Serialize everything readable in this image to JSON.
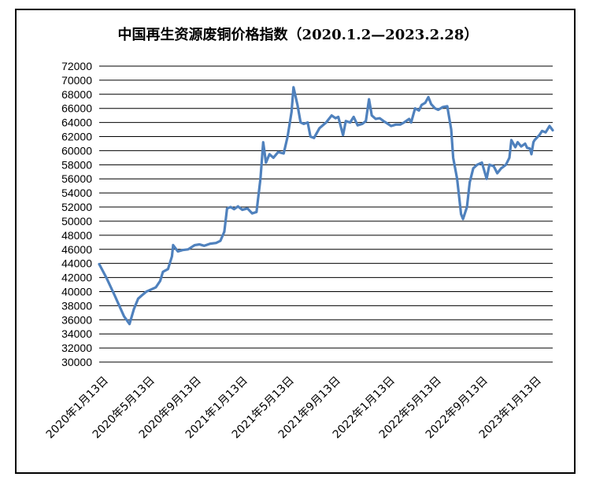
{
  "chart_data": {
    "type": "line",
    "title": "中国再生资源废铜价格指数（2020.1.2—2023.2.28）",
    "xlabel": "",
    "ylabel": "",
    "ylim": [
      30000,
      72000
    ],
    "y_ticks": [
      30000,
      32000,
      34000,
      36000,
      38000,
      40000,
      42000,
      44000,
      46000,
      48000,
      50000,
      52000,
      54000,
      56000,
      58000,
      60000,
      62000,
      64000,
      66000,
      68000,
      70000,
      72000
    ],
    "x_ticks": [
      "2020年1月13日",
      "2020年5月13日",
      "2020年9月13日",
      "2021年1月13日",
      "2021年5月13日",
      "2021年9月13日",
      "2022年1月13日",
      "2022年5月13日",
      "2022年9月13日",
      "2023年1月13日"
    ],
    "grid": "horizontal",
    "legend": "none",
    "line_color": "#4f81bd",
    "series": [
      {
        "name": "",
        "points": [
          [
            "2020-01-02",
            43900
          ],
          [
            "2020-01-20",
            42000
          ],
          [
            "2020-02-10",
            39500
          ],
          [
            "2020-03-05",
            36500
          ],
          [
            "2020-03-19",
            35400
          ],
          [
            "2020-03-30",
            37500
          ],
          [
            "2020-04-10",
            39000
          ],
          [
            "2020-04-20",
            39500
          ],
          [
            "2020-05-01",
            40000
          ],
          [
            "2020-05-13",
            40300
          ],
          [
            "2020-05-25",
            40600
          ],
          [
            "2020-06-05",
            41500
          ],
          [
            "2020-06-12",
            42800
          ],
          [
            "2020-06-25",
            43200
          ],
          [
            "2020-07-05",
            45000
          ],
          [
            "2020-07-08",
            46600
          ],
          [
            "2020-07-20",
            45700
          ],
          [
            "2020-08-01",
            45900
          ],
          [
            "2020-08-15",
            46000
          ],
          [
            "2020-09-01",
            46600
          ],
          [
            "2020-09-13",
            46700
          ],
          [
            "2020-09-25",
            46500
          ],
          [
            "2020-10-10",
            46800
          ],
          [
            "2020-10-25",
            46900
          ],
          [
            "2020-11-05",
            47200
          ],
          [
            "2020-11-15",
            48500
          ],
          [
            "2020-11-22",
            51800
          ],
          [
            "2020-12-01",
            52000
          ],
          [
            "2020-12-10",
            51700
          ],
          [
            "2020-12-20",
            52100
          ],
          [
            "2020-12-31",
            51600
          ],
          [
            "2021-01-13",
            51800
          ],
          [
            "2021-01-25",
            51100
          ],
          [
            "2021-02-05",
            51300
          ],
          [
            "2021-02-15",
            56000
          ],
          [
            "2021-02-22",
            61200
          ],
          [
            "2021-03-01",
            58300
          ],
          [
            "2021-03-10",
            59500
          ],
          [
            "2021-03-20",
            59000
          ],
          [
            "2021-04-01",
            59800
          ],
          [
            "2021-04-15",
            59600
          ],
          [
            "2021-04-25",
            62000
          ],
          [
            "2021-05-05",
            65500
          ],
          [
            "2021-05-10",
            69000
          ],
          [
            "2021-05-20",
            66500
          ],
          [
            "2021-05-28",
            64000
          ],
          [
            "2021-06-05",
            63800
          ],
          [
            "2021-06-15",
            64000
          ],
          [
            "2021-06-22",
            62000
          ],
          [
            "2021-07-01",
            61800
          ],
          [
            "2021-07-15",
            63200
          ],
          [
            "2021-08-01",
            64000
          ],
          [
            "2021-08-15",
            65000
          ],
          [
            "2021-08-25",
            64600
          ],
          [
            "2021-09-01",
            64800
          ],
          [
            "2021-09-13",
            62200
          ],
          [
            "2021-09-20",
            64200
          ],
          [
            "2021-10-01",
            64000
          ],
          [
            "2021-10-10",
            64800
          ],
          [
            "2021-10-20",
            63600
          ],
          [
            "2021-11-01",
            63800
          ],
          [
            "2021-11-10",
            64200
          ],
          [
            "2021-11-18",
            67300
          ],
          [
            "2021-11-25",
            65000
          ],
          [
            "2021-12-05",
            64500
          ],
          [
            "2021-12-15",
            64600
          ],
          [
            "2021-12-25",
            64200
          ],
          [
            "2022-01-05",
            63800
          ],
          [
            "2022-01-13",
            63500
          ],
          [
            "2022-01-25",
            63700
          ],
          [
            "2022-02-05",
            63700
          ],
          [
            "2022-02-15",
            64000
          ],
          [
            "2022-02-28",
            64500
          ],
          [
            "2022-03-05",
            64000
          ],
          [
            "2022-03-15",
            66000
          ],
          [
            "2022-03-25",
            65700
          ],
          [
            "2022-04-01",
            66500
          ],
          [
            "2022-04-10",
            66800
          ],
          [
            "2022-04-18",
            67600
          ],
          [
            "2022-04-25",
            66600
          ],
          [
            "2022-05-05",
            66000
          ],
          [
            "2022-05-13",
            65800
          ],
          [
            "2022-05-25",
            66200
          ],
          [
            "2022-06-05",
            66300
          ],
          [
            "2022-06-15",
            63000
          ],
          [
            "2022-06-20",
            59000
          ],
          [
            "2022-06-30",
            56000
          ],
          [
            "2022-07-10",
            51000
          ],
          [
            "2022-07-15",
            50300
          ],
          [
            "2022-07-25",
            52000
          ],
          [
            "2022-08-01",
            55500
          ],
          [
            "2022-08-10",
            57500
          ],
          [
            "2022-08-20",
            58000
          ],
          [
            "2022-09-01",
            58300
          ],
          [
            "2022-09-13",
            56000
          ],
          [
            "2022-09-20",
            58000
          ],
          [
            "2022-10-01",
            57800
          ],
          [
            "2022-10-10",
            56800
          ],
          [
            "2022-10-20",
            57500
          ],
          [
            "2022-11-01",
            58000
          ],
          [
            "2022-11-10",
            59000
          ],
          [
            "2022-11-15",
            61500
          ],
          [
            "2022-11-25",
            60500
          ],
          [
            "2022-12-01",
            61200
          ],
          [
            "2022-12-10",
            60600
          ],
          [
            "2022-12-20",
            61000
          ],
          [
            "2022-12-25",
            60400
          ],
          [
            "2023-01-01",
            60300
          ],
          [
            "2023-01-05",
            59500
          ],
          [
            "2023-01-10",
            61200
          ],
          [
            "2023-01-13",
            61500
          ],
          [
            "2023-01-25",
            62200
          ],
          [
            "2023-02-01",
            62800
          ],
          [
            "2023-02-10",
            62600
          ],
          [
            "2023-02-20",
            63500
          ],
          [
            "2023-02-28",
            62900
          ]
        ]
      }
    ]
  }
}
